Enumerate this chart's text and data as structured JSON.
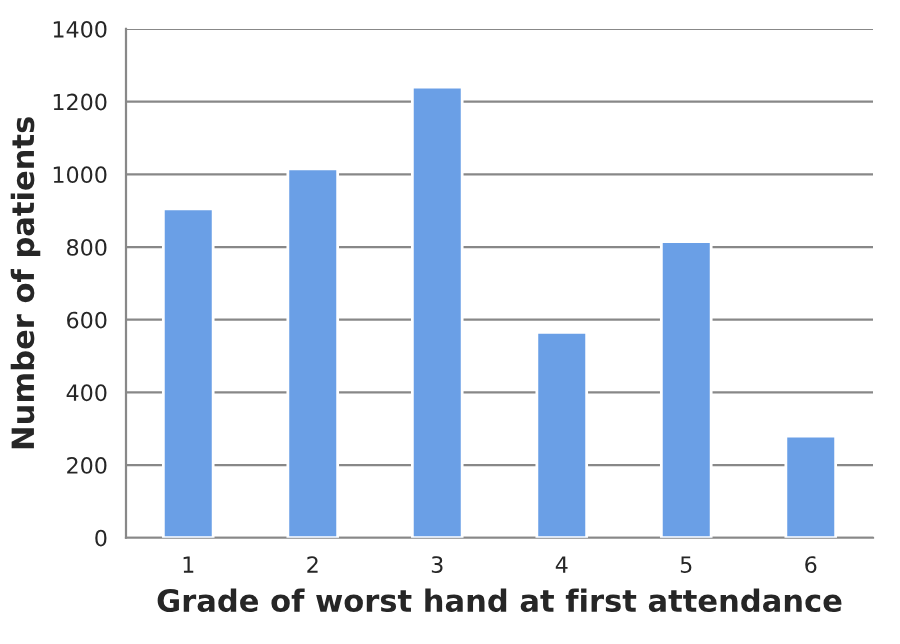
{
  "chart_data": {
    "type": "bar",
    "xlabel": "Grade of worst hand at first attendance",
    "ylabel": "Number of patients",
    "categories": [
      "1",
      "2",
      "3",
      "4",
      "5",
      "6"
    ],
    "values": [
      905,
      1015,
      1240,
      565,
      815,
      280
    ],
    "color": "#6a9fe6",
    "ylim": [
      0,
      1400
    ],
    "yticks": [
      0,
      200,
      400,
      600,
      800,
      1000,
      1200,
      1400
    ],
    "grid": "y"
  }
}
